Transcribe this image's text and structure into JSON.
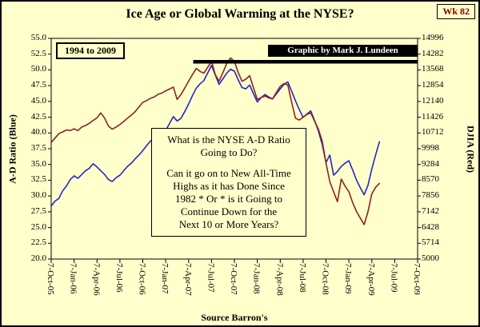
{
  "week_badge": "Wk 82",
  "title": "Ice Age or Global Warming at the NYSE?",
  "range_label": "1994 to 2009",
  "credit": "Graphic by Mark J. Lundeen",
  "annotation_lines": [
    "What is the NYSE A-D Ratio",
    "Going to Do?",
    "",
    "Can it go on to New All-Time",
    "Highs as it has Done Since",
    "1982 * Or * is it Going to",
    "Continue Down for the",
    "Next 10 or More Years?"
  ],
  "colors": {
    "background": "#FFFFCC",
    "ad_ratio_blue": "#2626C4",
    "djia_red": "#8B2323",
    "badge_text": "#8B0000",
    "credit_bg": "#000000",
    "credit_text": "#FFFFFF",
    "high_line": "#000000"
  },
  "chart_data": {
    "type": "line",
    "title": "Ice Age or Global Warming at the NYSE?",
    "xlabel": "Source Barron's",
    "ylabel_left": "A-D Ratio (Blue)",
    "ylabel_right": "DJIA (Red)",
    "legend_position": "none",
    "grid": false,
    "x_unit": "months since 7-Oct-05",
    "x_range_months": [
      0,
      48
    ],
    "x_tick_positions_months": [
      0,
      3,
      6,
      9,
      12,
      15,
      18,
      21,
      24,
      27,
      30,
      33,
      36,
      39,
      42,
      45,
      48
    ],
    "x_tick_labels": [
      "7-Oct-05",
      "7-Jan-06",
      "7-Apr-06",
      "7-Jul-06",
      "7-Oct-06",
      "7-Jan-07",
      "7-Apr-07",
      "7-Jul-07",
      "7-Oct-07",
      "7-Jan-08",
      "7-Apr-08",
      "7-Jul-08",
      "7-Oct-08",
      "7-Jan-09",
      "7-Apr-09",
      "7-Jul-09",
      "7-Oct-09"
    ],
    "y_left": {
      "min": 20.0,
      "max": 55.0,
      "tick_labels": [
        "55.0",
        "52.5",
        "50.0",
        "47.5",
        "45.0",
        "42.5",
        "40.0",
        "37.5",
        "35.0",
        "32.5",
        "30.0",
        "27.5",
        "25.0",
        "22.5",
        "20.0"
      ]
    },
    "y_right": {
      "min": 5000,
      "max": 14996,
      "tick_labels": [
        "14996",
        "14282",
        "13568",
        "12854",
        "12140",
        "11426",
        "10712",
        "9998",
        "9284",
        "8570",
        "7856",
        "7142",
        "6428",
        "5714",
        "5000"
      ]
    },
    "x_months": [
      0,
      0.5,
      1,
      1.5,
      2,
      2.5,
      3,
      3.5,
      4,
      4.5,
      5,
      5.5,
      6,
      6.5,
      7,
      7.5,
      8,
      8.5,
      9,
      9.5,
      10,
      10.5,
      11,
      11.5,
      12,
      12.5,
      13,
      13.5,
      14,
      14.5,
      15,
      15.5,
      16,
      16.5,
      17,
      17.5,
      18,
      18.5,
      19,
      19.5,
      20,
      20.5,
      21,
      21.5,
      22,
      22.5,
      23,
      23.5,
      24,
      24.5,
      25,
      25.5,
      26,
      26.5,
      27,
      27.5,
      28,
      28.5,
      29,
      29.5,
      30,
      30.5,
      31,
      31.5,
      32,
      32.5,
      33,
      33.5,
      34,
      34.5,
      35,
      35.5,
      36,
      36.5,
      37,
      37.5,
      38,
      38.5,
      39,
      39.5,
      40,
      40.5,
      41,
      41.5,
      42,
      42.5,
      43
    ],
    "series": [
      {
        "name": "NYSE A-D Ratio",
        "axis": "left",
        "color": "#2626C4",
        "y": [
          28.4,
          29.2,
          29.6,
          30.8,
          31.6,
          32.6,
          33.2,
          32.8,
          33.4,
          34.0,
          34.4,
          35.1,
          34.6,
          34.0,
          33.4,
          32.6,
          32.3,
          32.9,
          33.3,
          34.0,
          34.7,
          35.2,
          35.9,
          36.5,
          37.2,
          38.0,
          38.7,
          39.1,
          39.4,
          39.9,
          40.4,
          41.5,
          42.6,
          41.9,
          42.3,
          43.4,
          44.6,
          45.9,
          47.1,
          47.8,
          48.3,
          49.5,
          50.7,
          49.2,
          47.7,
          48.6,
          49.5,
          50.1,
          49.8,
          48.4,
          47.2,
          47.0,
          47.6,
          46.2,
          44.9,
          45.6,
          46.1,
          45.7,
          45.4,
          46.2,
          47.0,
          47.7,
          48.1,
          46.6,
          45.1,
          43.7,
          42.5,
          43.0,
          43.5,
          42.0,
          40.3,
          38.2,
          35.3,
          36.5,
          33.3,
          33.9,
          34.7,
          35.2,
          35.6,
          34.1,
          32.5,
          31.3,
          30.2,
          31.7,
          34.3,
          36.5,
          38.6
        ]
      },
      {
        "name": "DJIA",
        "axis": "right",
        "color": "#8B2323",
        "y": [
          10280,
          10480,
          10680,
          10760,
          10850,
          10820,
          10900,
          10820,
          10980,
          11050,
          11150,
          11280,
          11400,
          11620,
          11380,
          11020,
          10880,
          10980,
          11090,
          11230,
          11380,
          11520,
          11680,
          11890,
          12100,
          12180,
          12280,
          12340,
          12460,
          12520,
          12620,
          12700,
          12790,
          12230,
          12450,
          12750,
          13060,
          13350,
          13630,
          13500,
          13420,
          13680,
          13950,
          13350,
          13060,
          13450,
          13870,
          14110,
          13950,
          13450,
          13050,
          13150,
          13310,
          12750,
          12230,
          12320,
          12380,
          12300,
          12250,
          12550,
          12820,
          12950,
          12880,
          12100,
          11380,
          11300,
          11420,
          11550,
          11620,
          11250,
          10880,
          10350,
          9350,
          8500,
          8050,
          7600,
          8620,
          8300,
          8050,
          7550,
          7150,
          6850,
          6560,
          7150,
          7950,
          8250,
          8430
        ]
      }
    ],
    "annotations": {
      "all_time_high_line": {
        "type": "horizontal-line",
        "color": "#000000",
        "x1_months": 18.6,
        "x2_months": 48,
        "value_left_axis": 51.3
      }
    }
  }
}
